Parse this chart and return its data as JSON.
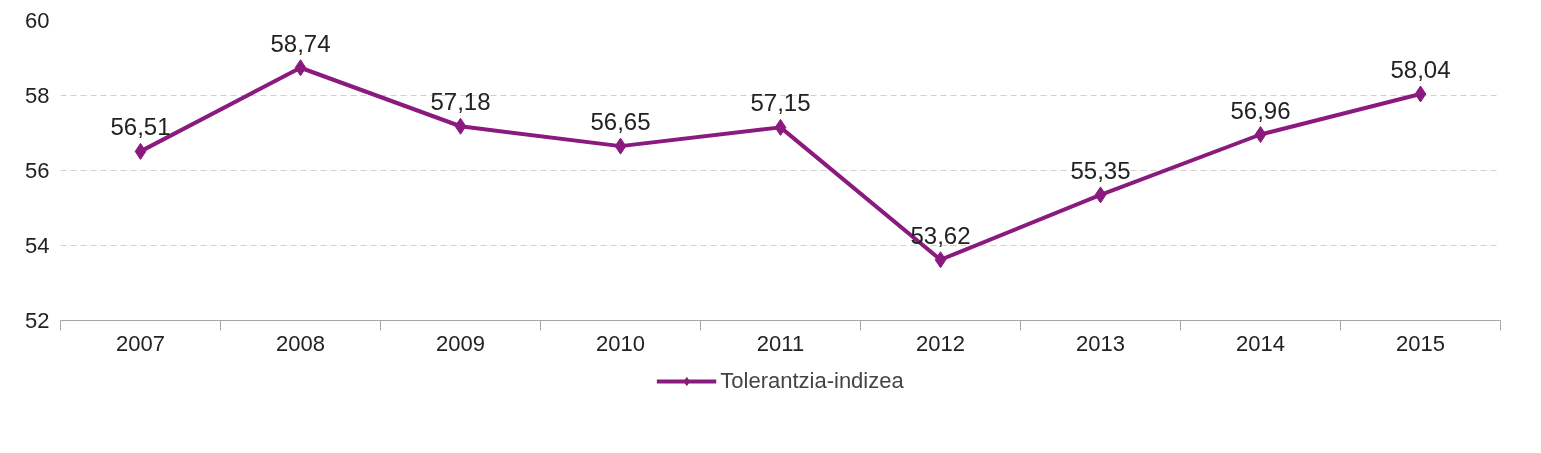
{
  "chart_data": {
    "type": "line",
    "categories": [
      "2007",
      "2008",
      "2009",
      "2010",
      "2011",
      "2012",
      "2013",
      "2014",
      "2015"
    ],
    "series": [
      {
        "name": "Tolerantzia-indizea",
        "color": "#8b1a7f",
        "values": [
          56.51,
          58.74,
          57.18,
          56.65,
          57.15,
          53.62,
          55.35,
          56.96,
          58.04
        ],
        "value_labels": [
          "56,51",
          "58,74",
          "57,18",
          "56,65",
          "57,15",
          "53,62",
          "55,35",
          "56,96",
          "58,04"
        ]
      }
    ],
    "ylim": [
      52,
      60
    ],
    "yticks": [
      52,
      54,
      56,
      58,
      60
    ],
    "grid": "y",
    "legend": "bottom",
    "marker": "diamond",
    "line_style": "solid"
  }
}
